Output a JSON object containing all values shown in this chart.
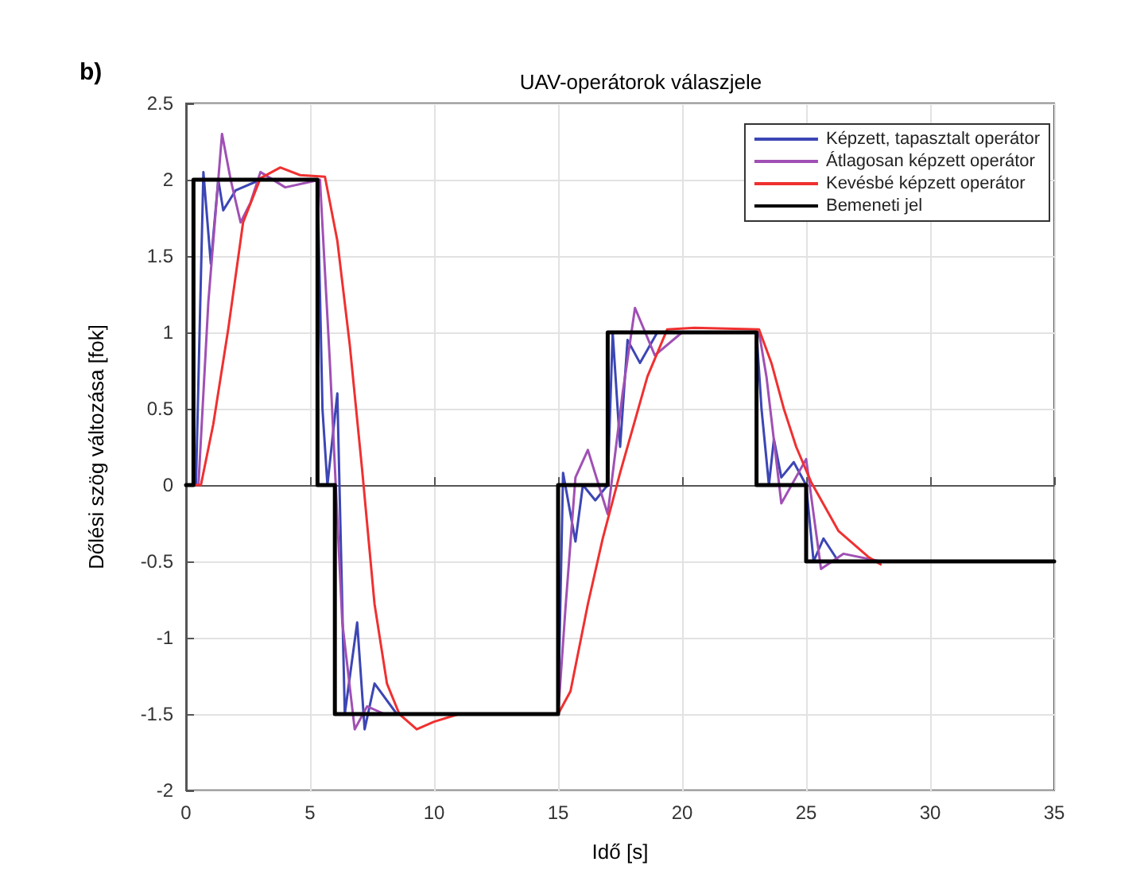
{
  "chart_data": {
    "type": "line",
    "title": "UAV-operátorok válaszjele",
    "xlabel": "Idő [s]",
    "ylabel": "Dőlési szög változása [fok]",
    "annotations": [
      "b)"
    ],
    "xlim": [
      0,
      35
    ],
    "xticks": [
      0,
      5,
      10,
      15,
      20,
      25,
      30,
      35
    ],
    "ylim": [
      -2,
      2.5
    ],
    "yticks": [
      -2,
      -1.5,
      -1,
      -0.5,
      0,
      0.5,
      1,
      1.5,
      2,
      2.5
    ],
    "grid": true,
    "legend": "top right",
    "marker": "none",
    "line_style": "solid",
    "series": [
      {
        "name": "Képzett, tapasztalt operátor",
        "color": "#3c46b4",
        "x": [
          0,
          0.4,
          0.7,
          1.0,
          1.3,
          1.5,
          2.0,
          3.0,
          5.3,
          5.5,
          5.7,
          6.1,
          6.4,
          6.9,
          7.2,
          7.6,
          8.5,
          15,
          15.2,
          15.7,
          16.0,
          16.5,
          17.0,
          17.2,
          17.5,
          17.8,
          18.3,
          19.0,
          23.0,
          23.2,
          23.5,
          23.7,
          24.0,
          24.5,
          25.0,
          25.3,
          25.7,
          26.3,
          35
        ],
        "values": [
          0,
          0,
          2.05,
          1.45,
          2.0,
          1.8,
          1.93,
          2.0,
          2.0,
          0.5,
          0,
          0.6,
          -1.5,
          -0.9,
          -1.6,
          -1.3,
          -1.5,
          -1.5,
          0.08,
          -0.37,
          0,
          -0.1,
          0,
          1.0,
          0.25,
          0.95,
          0.8,
          1.0,
          1.0,
          0.5,
          0,
          0.3,
          0.05,
          0.15,
          0,
          -0.5,
          -0.35,
          -0.5,
          -0.5
        ]
      },
      {
        "name": "Átlagosan képzett operátor",
        "color": "#a050b4",
        "x": [
          0,
          0.5,
          0.9,
          1.45,
          1.8,
          2.2,
          2.6,
          3.0,
          4.0,
          5.4,
          5.8,
          6.3,
          6.8,
          7.3,
          8.0,
          15,
          15.3,
          15.7,
          16.2,
          17.0,
          17.6,
          18.1,
          18.9,
          20,
          23.1,
          23.4,
          24.0,
          25.0,
          25.6,
          26.5,
          28,
          35
        ],
        "values": [
          0,
          0,
          1.2,
          2.3,
          2.0,
          1.72,
          1.85,
          2.05,
          1.95,
          2.0,
          0.8,
          -0.9,
          -1.6,
          -1.45,
          -1.5,
          -1.5,
          -0.8,
          0.05,
          0.23,
          -0.19,
          0.6,
          1.16,
          0.85,
          1.0,
          1.0,
          0.71,
          -0.12,
          0.17,
          -0.55,
          -0.45,
          -0.5,
          -0.5
        ]
      },
      {
        "name": "Kevésbé képzett operátor",
        "color": "#f03030",
        "x": [
          0,
          0.3,
          0.6,
          1.1,
          1.7,
          2.3,
          3.0,
          3.8,
          4.6,
          5.6,
          6.1,
          6.6,
          7.1,
          7.6,
          8.1,
          8.6,
          9.3,
          10.0,
          11.0,
          15,
          15.5,
          16.2,
          16.8,
          17.5,
          18.6,
          19.4,
          20.5,
          23.1,
          23.6,
          24.1,
          24.6,
          25.2,
          26.3,
          27.5,
          28.0
        ],
        "values": [
          0,
          0,
          0,
          0.4,
          1.02,
          1.72,
          2.01,
          2.08,
          2.03,
          2.02,
          1.6,
          0.92,
          0.1,
          -0.78,
          -1.3,
          -1.5,
          -1.6,
          -1.55,
          -1.5,
          -1.5,
          -1.35,
          -0.78,
          -0.35,
          0.08,
          0.71,
          1.02,
          1.03,
          1.02,
          0.8,
          0.5,
          0.25,
          0.02,
          -0.3,
          -0.47,
          -0.52
        ]
      },
      {
        "name": "Bemeneti jel",
        "color": "#000000",
        "x": [
          0,
          0.3,
          0.3,
          5.3,
          5.3,
          6.0,
          6.0,
          15.0,
          15.0,
          17.0,
          17.0,
          23.0,
          23.0,
          25.0,
          25.0,
          35
        ],
        "values": [
          0,
          0,
          2,
          2,
          0,
          0,
          -1.5,
          -1.5,
          0,
          0,
          1,
          1,
          0,
          0,
          -0.5,
          -0.5
        ]
      }
    ]
  }
}
